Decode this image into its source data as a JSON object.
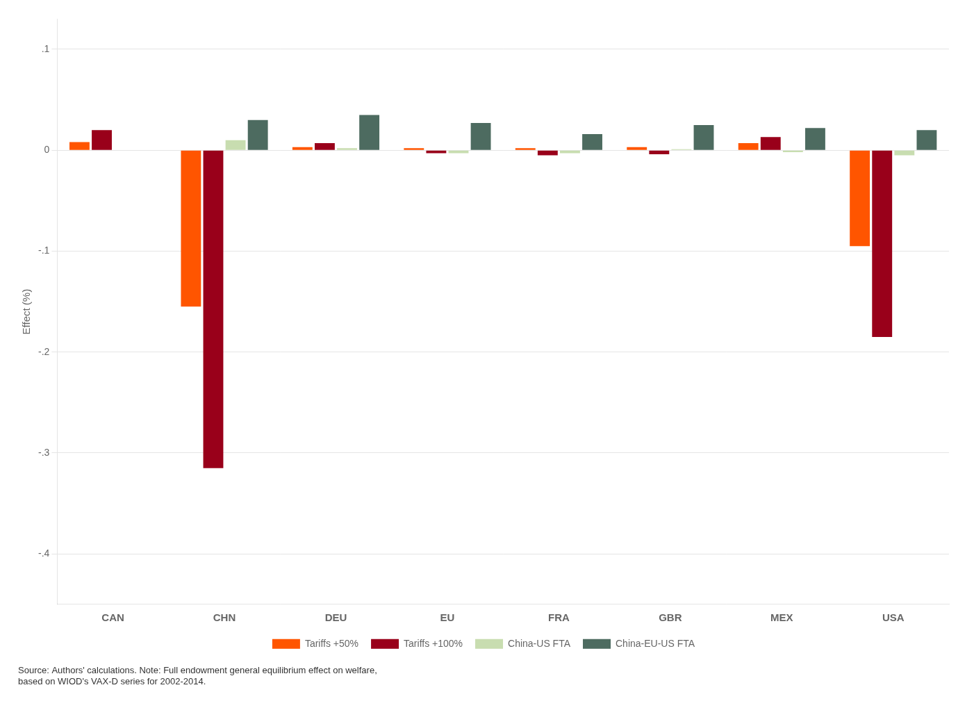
{
  "chart_data": {
    "type": "bar",
    "categories": [
      "CAN",
      "CHN",
      "DEU",
      "EU",
      "FRA",
      "GBR",
      "MEX",
      "USA"
    ],
    "series": [
      {
        "name": "Tariffs +50%",
        "color": "#FF5500",
        "values": [
          0.008,
          -0.155,
          0.003,
          0.002,
          0.002,
          0.003,
          0.007,
          -0.095
        ]
      },
      {
        "name": "Tariffs +100%",
        "color": "#99001A",
        "values": [
          0.02,
          -0.315,
          0.007,
          -0.003,
          -0.005,
          -0.004,
          0.013,
          -0.185
        ]
      },
      {
        "name": "China-US FTA",
        "color": "#C8DDB0",
        "values": [
          0.0,
          0.01,
          0.002,
          -0.003,
          -0.003,
          0.001,
          -0.002,
          -0.005
        ]
      },
      {
        "name": "China-EU-US FTA",
        "color": "#4D6B60",
        "values": [
          0.0,
          0.03,
          0.035,
          0.027,
          0.016,
          0.025,
          0.022,
          0.02
        ]
      }
    ],
    "ylabel": "Effect (%)",
    "ylim": [
      -0.45,
      0.13
    ],
    "yticks": [
      {
        "value": 0.1,
        "label": ".1"
      },
      0,
      {
        "value": -0.1,
        "label": "-.1"
      },
      {
        "value": -0.2,
        "label": "-.2"
      },
      {
        "value": -0.3,
        "label": "-.3"
      },
      {
        "value": -0.4,
        "label": "-.4"
      }
    ],
    "grid": true,
    "legend": "bottom",
    "annotation": "Source: Authors' calculations. Note: Full endowment general equilibrium effect on welfare,\nbased on WIOD's VAX-D series for 2002-2014."
  }
}
